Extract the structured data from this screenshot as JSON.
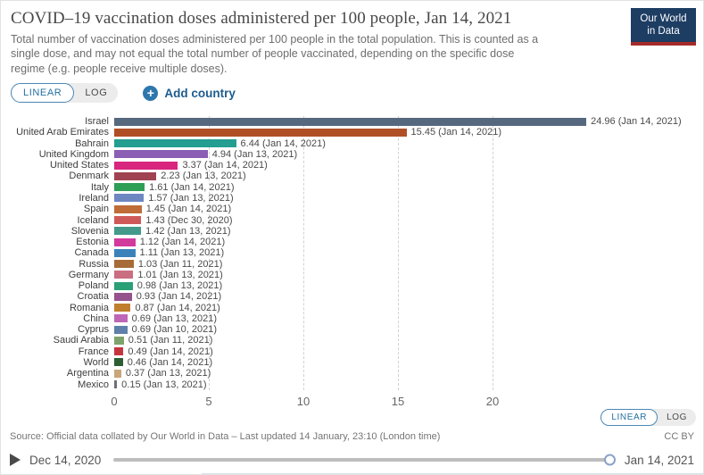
{
  "header": {
    "title": "COVID–19 vaccination doses administered per 100 people, Jan 14, 2021",
    "subtitle": "Total number of vaccination doses administered per 100 people in the total population. This is counted as a single dose, and may not equal the total number of people vaccinated, depending on the specific dose regime (e.g. people receive multiple doses).",
    "logo": {
      "line1": "Our World",
      "line2": "in Data"
    }
  },
  "controls": {
    "linear_label": "LINEAR",
    "log_label": "LOG",
    "add_country_label": "Add country",
    "plus_icon": "+"
  },
  "chart_data": {
    "type": "bar",
    "orientation": "horizontal",
    "title": "COVID–19 vaccination doses administered per 100 people, Jan 14, 2021",
    "xlabel": "",
    "ylabel": "",
    "xlim": [
      0,
      25
    ],
    "x_ticks": [
      0,
      5,
      10,
      15,
      20
    ],
    "grid": "dashed-vertical",
    "value_label_format": "value (date)",
    "series": [
      {
        "name": "Israel",
        "value": 24.96,
        "date": "Jan 14, 2021",
        "color": "#56687d"
      },
      {
        "name": "United Arab Emirates",
        "value": 15.45,
        "date": "Jan 14, 2021",
        "color": "#b04f26"
      },
      {
        "name": "Bahrain",
        "value": 6.44,
        "date": "Jan 14, 2021",
        "color": "#239e90"
      },
      {
        "name": "United Kingdom",
        "value": 4.94,
        "date": "Jan 13, 2021",
        "color": "#8a5fb4"
      },
      {
        "name": "United States",
        "value": 3.37,
        "date": "Jan 14, 2021",
        "color": "#d8257e"
      },
      {
        "name": "Denmark",
        "value": 2.23,
        "date": "Jan 13, 2021",
        "color": "#a04351"
      },
      {
        "name": "Italy",
        "value": 1.61,
        "date": "Jan 14, 2021",
        "color": "#2f9e56"
      },
      {
        "name": "Ireland",
        "value": 1.57,
        "date": "Jan 13, 2021",
        "color": "#6d87c3"
      },
      {
        "name": "Spain",
        "value": 1.45,
        "date": "Jan 14, 2021",
        "color": "#bf6d38"
      },
      {
        "name": "Iceland",
        "value": 1.43,
        "date": "Dec 30, 2020",
        "color": "#cf5959"
      },
      {
        "name": "Slovenia",
        "value": 1.42,
        "date": "Jan 13, 2021",
        "color": "#439a8b"
      },
      {
        "name": "Estonia",
        "value": 1.12,
        "date": "Jan 14, 2021",
        "color": "#d23a9c"
      },
      {
        "name": "Canada",
        "value": 1.11,
        "date": "Jan 13, 2021",
        "color": "#3b82ba"
      },
      {
        "name": "Russia",
        "value": 1.03,
        "date": "Jan 11, 2021",
        "color": "#a66b36"
      },
      {
        "name": "Germany",
        "value": 1.01,
        "date": "Jan 13, 2021",
        "color": "#ca6e81"
      },
      {
        "name": "Poland",
        "value": 0.98,
        "date": "Jan 13, 2021",
        "color": "#2aa077"
      },
      {
        "name": "Croatia",
        "value": 0.93,
        "date": "Jan 14, 2021",
        "color": "#95538d"
      },
      {
        "name": "Romania",
        "value": 0.87,
        "date": "Jan 14, 2021",
        "color": "#bf7f2e"
      },
      {
        "name": "China",
        "value": 0.69,
        "date": "Jan 13, 2021",
        "color": "#bd67b6"
      },
      {
        "name": "Cyprus",
        "value": 0.69,
        "date": "Jan 10, 2021",
        "color": "#5e80a9"
      },
      {
        "name": "Saudi Arabia",
        "value": 0.51,
        "date": "Jan 11, 2021",
        "color": "#7da26a"
      },
      {
        "name": "France",
        "value": 0.49,
        "date": "Jan 14, 2021",
        "color": "#c53540"
      },
      {
        "name": "World",
        "value": 0.46,
        "date": "Jan 14, 2021",
        "color": "#2d5e33"
      },
      {
        "name": "Argentina",
        "value": 0.37,
        "date": "Jan 13, 2021",
        "color": "#c9a57a"
      },
      {
        "name": "Mexico",
        "value": 0.15,
        "date": "Jan 13, 2021",
        "color": "#6e6e79"
      }
    ]
  },
  "footer": {
    "source": "Source: Official data collated by Our World in Data – Last updated 14 January, 23:10 (London time)",
    "license": "CC BY"
  },
  "timeline": {
    "start": "Dec 14, 2020",
    "end": "Jan 14, 2021"
  },
  "colors": {
    "accent_blue": "#2471a3",
    "logo_bg": "#1d3d63",
    "logo_stripe": "#a52a2a"
  }
}
